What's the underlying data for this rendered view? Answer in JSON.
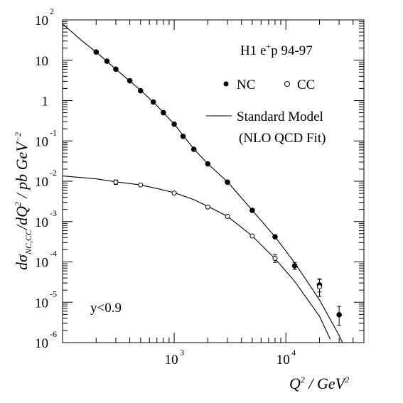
{
  "chart_data": {
    "type": "scatter",
    "title": "H1 e+p 94-97",
    "title_parts": {
      "main": "H1 e",
      "sup": "+",
      "rest": "p 94-97"
    },
    "xlabel": "Q^2 / GeV^2",
    "ylabel": "dσ_{NC,CC}/dQ^2 / pb GeV^-2",
    "x_scale": "log",
    "y_scale": "log",
    "xlim": [
      100,
      50000
    ],
    "ylim": [
      1e-06,
      100
    ],
    "grid": false,
    "legend_position": "top-right",
    "x_ticks": [
      {
        "base": "10",
        "exp": "3",
        "value": 1000
      },
      {
        "base": "10",
        "exp": "4",
        "value": 10000
      }
    ],
    "y_ticks": [
      {
        "base": "10",
        "exp": "2",
        "value": 100
      },
      {
        "base": "10",
        "exp": "",
        "value": 10
      },
      {
        "base": "1",
        "exp": "",
        "value": 1
      },
      {
        "base": "10",
        "exp": "-1",
        "value": 0.1
      },
      {
        "base": "10",
        "exp": "-2",
        "value": 0.01
      },
      {
        "base": "10",
        "exp": "-3",
        "value": 0.001
      },
      {
        "base": "10",
        "exp": "-4",
        "value": 0.0001
      },
      {
        "base": "10",
        "exp": "-5",
        "value": 1e-05
      },
      {
        "base": "10",
        "exp": "-6",
        "value": 1e-06
      }
    ],
    "series": [
      {
        "name": "NC",
        "marker": "filled-circle",
        "x": [
          200,
          250,
          300,
          400,
          500,
          650,
          800,
          1000,
          1200,
          1500,
          2000,
          3000,
          5000,
          8000,
          12000,
          20000,
          30000
        ],
        "y": [
          16,
          9.5,
          6,
          3.1,
          1.75,
          0.92,
          0.5,
          0.26,
          0.13,
          0.062,
          0.027,
          0.0095,
          0.0019,
          0.00042,
          8e-05,
          2.7e-05,
          4.9e-06
        ],
        "yerr_up": [
          0.3,
          0.2,
          0.15,
          0.08,
          0.05,
          0.03,
          0.02,
          0.01,
          0.005,
          0.003,
          0.0015,
          0.0006,
          0.00015,
          5e-05,
          1.7e-05,
          1.1e-05,
          3e-06
        ],
        "yerr_down": [
          0.3,
          0.2,
          0.15,
          0.08,
          0.05,
          0.03,
          0.02,
          0.01,
          0.005,
          0.003,
          0.0015,
          0.0006,
          0.00015,
          5e-05,
          1.5e-05,
          9e-06,
          2.2e-06
        ]
      },
      {
        "name": "CC",
        "marker": "open-circle",
        "x": [
          300,
          500,
          1000,
          2000,
          3000,
          5000,
          8000,
          20000
        ],
        "y": [
          0.0095,
          0.0081,
          0.0051,
          0.0023,
          0.00135,
          0.00044,
          0.000122,
          2.4e-05
        ],
        "yerr_up": [
          0.0012,
          0.0008,
          0.0005,
          0.00025,
          0.00015,
          5e-05,
          3e-05,
          1.3e-05
        ],
        "yerr_down": [
          0.0012,
          0.0008,
          0.0005,
          0.00025,
          0.00015,
          5e-05,
          2.5e-05,
          1e-05
        ]
      }
    ],
    "curves": [
      {
        "name": "Standard Model",
        "applies_to": "NC",
        "x": [
          100,
          150,
          200,
          300,
          500,
          700,
          1000,
          1500,
          2000,
          3000,
          5000,
          8000,
          12000,
          20000,
          30000,
          35000
        ],
        "y": [
          80,
          30,
          16,
          6,
          1.8,
          0.75,
          0.26,
          0.063,
          0.027,
          0.0097,
          0.0019,
          0.00042,
          9.5e-05,
          1.15e-05,
          1.5e-06,
          6e-07
        ]
      },
      {
        "name": "Standard Model",
        "applies_to": "CC",
        "x": [
          100,
          200,
          300,
          500,
          700,
          1000,
          1500,
          2000,
          3000,
          5000,
          8000,
          12000,
          20000,
          25000
        ],
        "y": [
          0.0135,
          0.0115,
          0.0097,
          0.0081,
          0.0066,
          0.0052,
          0.0035,
          0.0024,
          0.00135,
          0.00044,
          0.00012,
          3.3e-05,
          4.5e-06,
          1.2e-06
        ]
      }
    ],
    "legend": {
      "nc_label": "NC",
      "cc_label": "CC",
      "model_label": "Standard Model",
      "model_sublabel": "(NLO QCD Fit)"
    },
    "annotation": "y<0.9"
  }
}
